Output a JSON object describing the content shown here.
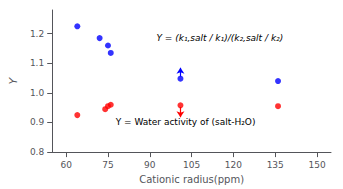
{
  "chart_data": {
    "type": "scatter",
    "xlabel": "Cationic radius(ppm)",
    "ylabel": "Y",
    "xlim": [
      55,
      155
    ],
    "ylim": [
      0.8,
      1.28
    ],
    "xticks": [
      60,
      75,
      90,
      105,
      120,
      135,
      150
    ],
    "yticks": [
      0.8,
      0.9,
      {
        "value": 1.0,
        "label": "1.0"
      },
      1.1,
      1.2
    ],
    "grid": false,
    "series": [
      {
        "color": "#0000ff",
        "x": [
          64,
          72,
          75,
          76,
          101,
          136
        ],
        "values": [
          1.225,
          1.185,
          1.16,
          1.135,
          1.048,
          1.04
        ]
      },
      {
        "color": "#ff0000",
        "x": [
          64,
          74,
          75,
          76,
          101,
          136
        ],
        "values": [
          0.925,
          0.945,
          0.955,
          0.96,
          0.958,
          0.955
        ]
      }
    ],
    "arrows": [
      {
        "x": 101,
        "y_start": 1.055,
        "y_end": 1.085,
        "color": "#0000ff"
      },
      {
        "x": 101,
        "y_start": 0.952,
        "y_end": 0.918,
        "color": "#ff0000"
      }
    ],
    "annotations": [
      {
        "text": "Y = (k₁,salt / k₁)/(k₂,salt / k₂)",
        "style": "italic"
      },
      {
        "text": "Y = Water activity of (salt-H₂O)",
        "style": "normal"
      }
    ]
  }
}
